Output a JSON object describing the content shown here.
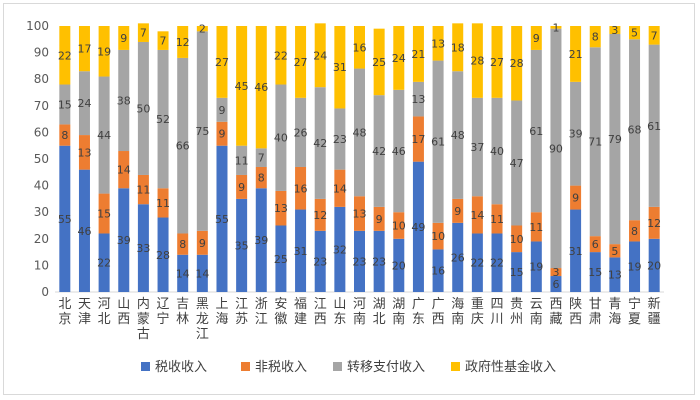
{
  "chart_data": {
    "type": "bar",
    "stacked": true,
    "ylim": [
      0,
      100
    ],
    "yticks": [
      0,
      10,
      20,
      30,
      40,
      50,
      60,
      70,
      80,
      90,
      100
    ],
    "grid": false,
    "legend_position": "bottom",
    "categories": [
      "北京",
      "天津",
      "河北",
      "山西",
      "内蒙古",
      "辽宁",
      "吉林",
      "黑龙江",
      "上海",
      "江苏",
      "浙江",
      "安徽",
      "福建",
      "江西",
      "山东",
      "河南",
      "湖北",
      "湖南",
      "广东",
      "广西",
      "海南",
      "重庆",
      "四川",
      "贵州",
      "云南",
      "西藏",
      "陕西",
      "甘肃",
      "青海",
      "宁夏",
      "新疆"
    ],
    "series": [
      {
        "name": "税收收入",
        "color": "#4472c4",
        "values": [
          55,
          46,
          22,
          39,
          33,
          28,
          14,
          14,
          55,
          35,
          39,
          25,
          31,
          23,
          32,
          23,
          23,
          20,
          49,
          16,
          26,
          22,
          22,
          15,
          19,
          6,
          31,
          15,
          13,
          19,
          20
        ]
      },
      {
        "name": "非税收入",
        "color": "#ed7d31",
        "values": [
          8,
          13,
          15,
          14,
          11,
          11,
          8,
          9,
          9,
          9,
          8,
          13,
          16,
          12,
          14,
          13,
          9,
          10,
          17,
          10,
          9,
          14,
          11,
          10,
          11,
          3,
          9,
          6,
          5,
          8,
          12
        ]
      },
      {
        "name": "转移支付收入",
        "color": "#a5a5a5",
        "values": [
          15,
          24,
          44,
          38,
          50,
          52,
          66,
          75,
          9,
          11,
          7,
          40,
          26,
          42,
          23,
          48,
          42,
          46,
          13,
          61,
          48,
          37,
          40,
          47,
          61,
          90,
          39,
          71,
          79,
          68,
          61
        ]
      },
      {
        "name": "政府性基金收入",
        "color": "#ffc000",
        "values": [
          22,
          17,
          19,
          9,
          7,
          7,
          12,
          2,
          27,
          45,
          46,
          22,
          27,
          24,
          31,
          16,
          25,
          24,
          21,
          13,
          18,
          28,
          27,
          28,
          9,
          1,
          21,
          8,
          3,
          5,
          7
        ]
      }
    ]
  }
}
